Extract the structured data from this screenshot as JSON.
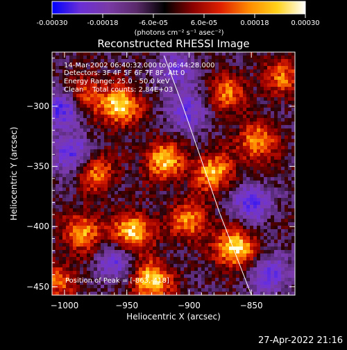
{
  "colorbar": {
    "tick_labels": [
      "-0.00030",
      "-0.00018",
      "-6.0e-05",
      "6.0e-05",
      "0.00018",
      "0.00030"
    ],
    "tick_values": [
      -0.0003,
      -0.00018,
      -6e-05,
      6e-05,
      0.00018,
      0.0003
    ],
    "range": [
      -0.0003,
      0.0003
    ],
    "unit_label": "(photons cm⁻² s⁻¹ asec⁻²)",
    "palette": [
      "#0000ff",
      "#6a2fd6",
      "#7a3aa6",
      "#5a2a6a",
      "#000000",
      "#8a0000",
      "#e02000",
      "#ff8a00",
      "#ffd21a",
      "#ffffff"
    ]
  },
  "chart_data": {
    "type": "heatmap",
    "title": "Reconstructed RHESSI Image",
    "xlabel": "Heliocentric X (arcsec)",
    "ylabel": "Heliocentric Y (arcsec)",
    "x_ticks": [
      -1000,
      -950,
      -900,
      -850
    ],
    "y_ticks": [
      -300,
      -350,
      -400,
      -450
    ],
    "xlim": [
      -1010,
      -815
    ],
    "ylim": [
      -457,
      -255
    ],
    "annotations": [
      "14-Mar-2002 06:40:32.000 to 06:44:28.000",
      "Detectors: 3F 4F 5F 6F 7F 8F, Att 0",
      "Energy Range: 25.0 - 50.0 keV",
      "Clean    Total counts: 2.84E+03"
    ],
    "peak_label": "Position of Peak = [-863,-418]",
    "peak": [
      -863,
      -418
    ],
    "hot_spots": [
      {
        "x": -955,
        "y": -300,
        "level": 0.95
      },
      {
        "x": -985,
        "y": -290,
        "level": 0.7
      },
      {
        "x": -920,
        "y": -345,
        "level": 0.85
      },
      {
        "x": -945,
        "y": -405,
        "level": 0.9
      },
      {
        "x": -985,
        "y": -405,
        "level": 0.75
      },
      {
        "x": -930,
        "y": -445,
        "level": 0.95
      },
      {
        "x": -863,
        "y": -418,
        "level": 1.0
      },
      {
        "x": -880,
        "y": -355,
        "level": 0.8
      },
      {
        "x": -845,
        "y": -330,
        "level": 0.75
      },
      {
        "x": -825,
        "y": -275,
        "level": 0.6
      },
      {
        "x": -870,
        "y": -290,
        "level": 0.65
      },
      {
        "x": -900,
        "y": -395,
        "level": 0.7
      },
      {
        "x": -975,
        "y": -355,
        "level": 0.65
      },
      {
        "x": -1005,
        "y": -445,
        "level": 0.55
      }
    ],
    "cold_spots": [
      {
        "x": -995,
        "y": -340,
        "level": -0.7
      },
      {
        "x": -850,
        "y": -380,
        "level": -0.65
      },
      {
        "x": -900,
        "y": -305,
        "level": -0.6
      },
      {
        "x": -1000,
        "y": -300,
        "level": -0.8
      },
      {
        "x": -835,
        "y": -440,
        "level": -0.6
      },
      {
        "x": -960,
        "y": -430,
        "level": -0.55
      },
      {
        "x": -910,
        "y": -270,
        "level": -0.5
      }
    ],
    "limb_curve": {
      "x": [
        -920,
        -905,
        -890,
        -875,
        -860,
        -850
      ],
      "y": [
        -258,
        -300,
        -345,
        -390,
        -430,
        -457
      ]
    }
  },
  "footer": {
    "timestamp": "27-Apr-2022 21:16"
  }
}
